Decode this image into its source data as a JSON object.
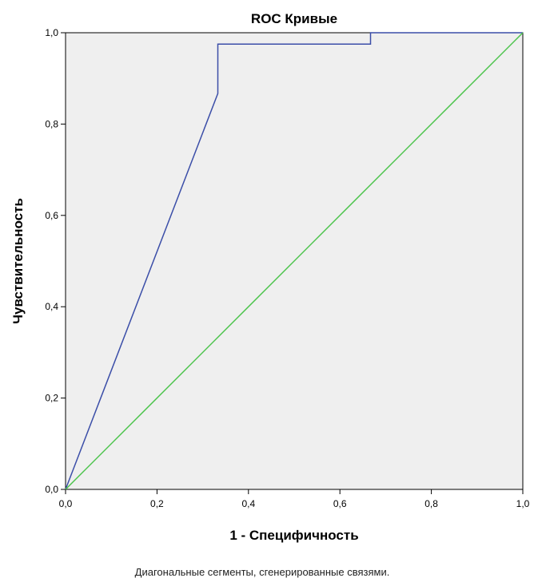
{
  "chart_data": {
    "type": "line",
    "title": "ROC Кривые",
    "xlabel": "1 - Специфичность",
    "ylabel": "Чувствительность",
    "xlim": [
      0,
      1
    ],
    "ylim": [
      0,
      1
    ],
    "x_ticks": [
      "0,0",
      "0,2",
      "0,4",
      "0,6",
      "0,8",
      "1,0"
    ],
    "y_ticks": [
      "0,0",
      "0,2",
      "0,4",
      "0,6",
      "0,8",
      "1,0"
    ],
    "grid": false,
    "plot_background": "#efefef",
    "series": [
      {
        "color": "#3b4ea8",
        "points": [
          [
            0.0,
            0.0
          ],
          [
            0.333,
            0.867
          ],
          [
            0.333,
            0.975
          ],
          [
            0.667,
            0.975
          ],
          [
            0.667,
            1.0
          ],
          [
            1.0,
            1.0
          ]
        ]
      },
      {
        "color": "#4cc44c",
        "points": [
          [
            0.0,
            0.0
          ],
          [
            1.0,
            1.0
          ]
        ]
      }
    ],
    "footnote": "Диагональные сегменты, сгенерированные связями."
  }
}
